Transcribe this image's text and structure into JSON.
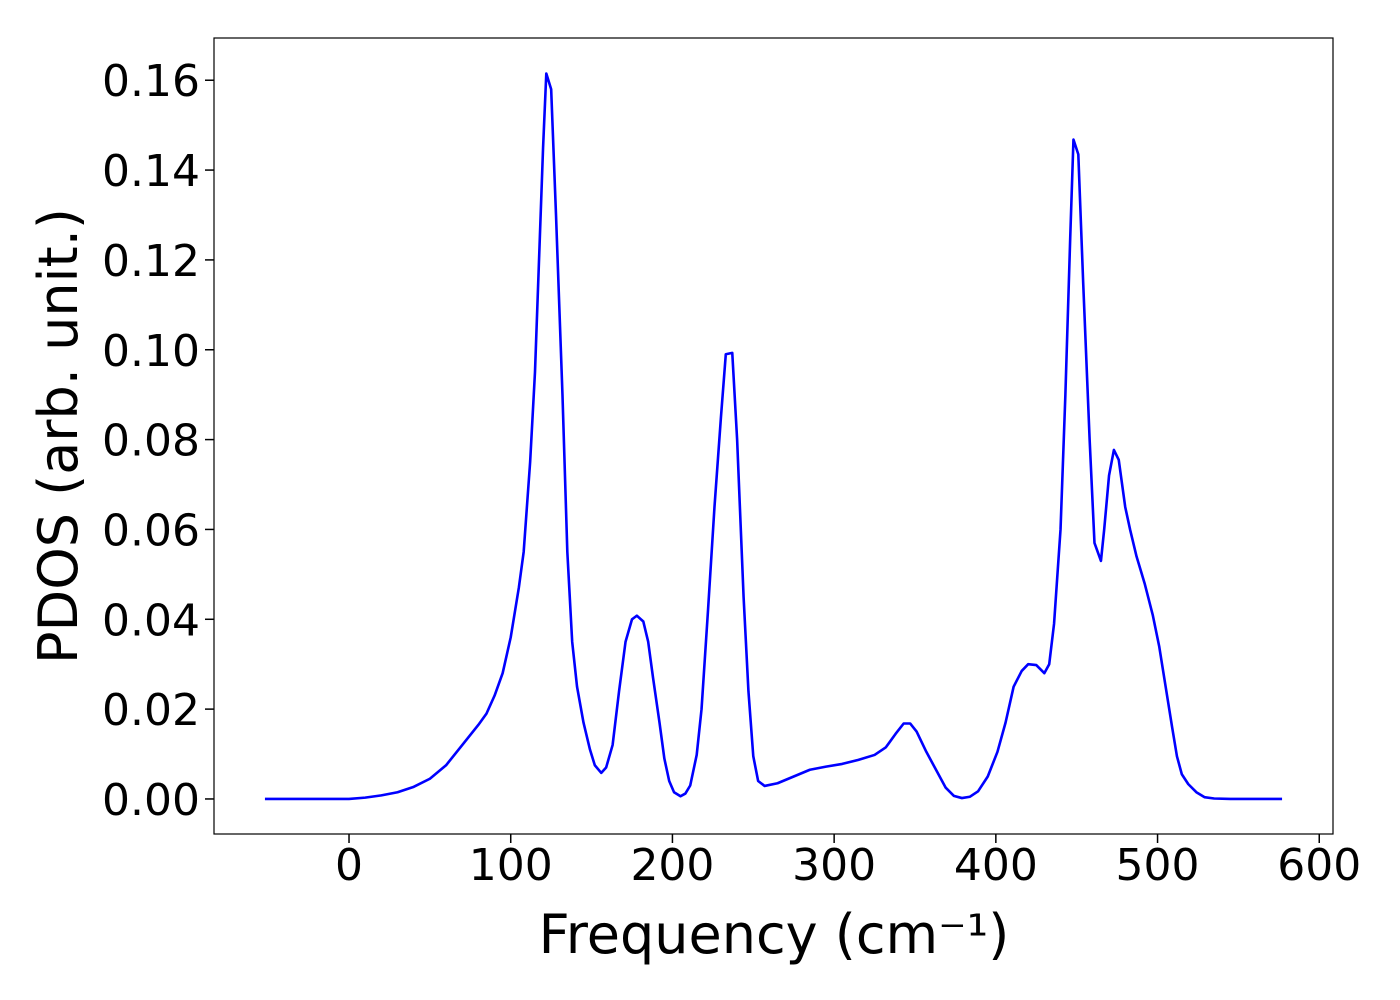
{
  "chart_data": {
    "type": "line",
    "xlabel": "Frequency (cm⁻¹)",
    "ylabel": "PDOS (arb. unit.)",
    "xlim": [
      -83.5,
      608.5
    ],
    "ylim": [
      -0.0078,
      0.1694
    ],
    "xticks": [
      0,
      100,
      200,
      300,
      400,
      500,
      600
    ],
    "yticks": [
      {
        "value": 0,
        "label": "0.00"
      },
      {
        "value": 0.02,
        "label": "0.02"
      },
      {
        "value": 0.04,
        "label": "0.04"
      },
      {
        "value": 0.06,
        "label": "0.06"
      },
      {
        "value": 0.08,
        "label": "0.08"
      },
      {
        "value": 0.1,
        "label": "0.10"
      },
      {
        "value": 0.12,
        "label": "0.12"
      },
      {
        "value": 0.14,
        "label": "0.14"
      },
      {
        "value": 0.16,
        "label": "0.16"
      }
    ],
    "grid": false,
    "x": [
      -52,
      0,
      10,
      20,
      30,
      40,
      50,
      60,
      70,
      80,
      85,
      90,
      95,
      100,
      105,
      108,
      112,
      115,
      118,
      120,
      122,
      125,
      128,
      132,
      135,
      138,
      141,
      145,
      149,
      152,
      156,
      159,
      163,
      167,
      171,
      175,
      178,
      182,
      185,
      188,
      192,
      195,
      198,
      201,
      205,
      208,
      211,
      215,
      218,
      222,
      226,
      230,
      233,
      237,
      240,
      244,
      247,
      250,
      253,
      257,
      265,
      275,
      285,
      295,
      305,
      315,
      325,
      332,
      338,
      343,
      347,
      351,
      357,
      363,
      369,
      374,
      379,
      384,
      389,
      395,
      401,
      406,
      411,
      416,
      420,
      425,
      430,
      433,
      436,
      440,
      443,
      446,
      448,
      451,
      454,
      458,
      461,
      465,
      467,
      470,
      473,
      476,
      480,
      483,
      487,
      492,
      497,
      501,
      505,
      509,
      512,
      515,
      519,
      524,
      529,
      535,
      545,
      577
    ],
    "series": [
      {
        "color": "#0000ff",
        "values": [
          0,
          0,
          0.0003,
          0.0008,
          0.0015,
          0.0027,
          0.0045,
          0.0075,
          0.012,
          0.0165,
          0.019,
          0.023,
          0.028,
          0.036,
          0.047,
          0.055,
          0.075,
          0.095,
          0.125,
          0.145,
          0.1615,
          0.158,
          0.13,
          0.09,
          0.055,
          0.035,
          0.025,
          0.017,
          0.011,
          0.0075,
          0.0058,
          0.007,
          0.012,
          0.024,
          0.035,
          0.04,
          0.0408,
          0.0395,
          0.035,
          0.027,
          0.017,
          0.009,
          0.004,
          0.0015,
          0.0006,
          0.0012,
          0.003,
          0.0098,
          0.02,
          0.042,
          0.065,
          0.085,
          0.099,
          0.0993,
          0.08,
          0.045,
          0.024,
          0.0095,
          0.004,
          0.0029,
          0.0035,
          0.005,
          0.0065,
          0.0072,
          0.0078,
          0.0087,
          0.0098,
          0.0115,
          0.0145,
          0.0168,
          0.0168,
          0.015,
          0.0105,
          0.0065,
          0.0025,
          0.0007,
          0.0002,
          0.0005,
          0.0017,
          0.005,
          0.0105,
          0.017,
          0.025,
          0.0285,
          0.03,
          0.0298,
          0.028,
          0.03,
          0.039,
          0.06,
          0.09,
          0.125,
          0.1468,
          0.1435,
          0.115,
          0.08,
          0.057,
          0.053,
          0.06,
          0.072,
          0.0777,
          0.0755,
          0.065,
          0.06,
          0.054,
          0.048,
          0.041,
          0.034,
          0.025,
          0.016,
          0.0095,
          0.0055,
          0.0033,
          0.0015,
          0.0004,
          0.0001,
          0,
          0
        ]
      }
    ]
  }
}
